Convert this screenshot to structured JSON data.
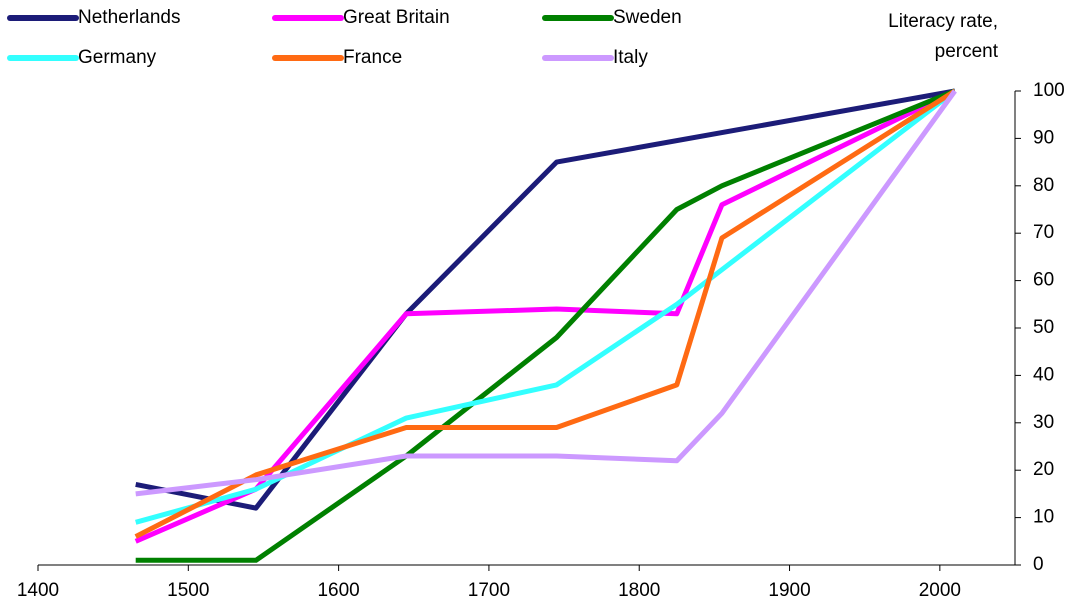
{
  "chart_data": {
    "type": "line",
    "ylabel": [
      "Literacy rate,",
      "percent"
    ],
    "xlim": [
      1400,
      2050
    ],
    "xticks": [
      1400,
      1500,
      1600,
      1700,
      1800,
      1900,
      2000
    ],
    "ylim": [
      0,
      100
    ],
    "yticks": [
      0,
      10,
      20,
      30,
      40,
      50,
      60,
      70,
      80,
      90,
      100
    ],
    "series": [
      {
        "name": "Netherlands",
        "color": "#1c1c78",
        "x": [
          1465,
          1545,
          1645,
          1745,
          2010
        ],
        "values": [
          17,
          12,
          53,
          85,
          100
        ]
      },
      {
        "name": "Great Britain",
        "color": "#ff00ff",
        "x": [
          1465,
          1545,
          1645,
          1745,
          1825,
          1855,
          2010
        ],
        "values": [
          5,
          16,
          53,
          54,
          53,
          76,
          100
        ]
      },
      {
        "name": "Sweden",
        "color": "#008000",
        "x": [
          1465,
          1545,
          1645,
          1745,
          1825,
          1855,
          2010
        ],
        "values": [
          1,
          1,
          23,
          48,
          75,
          80,
          100
        ]
      },
      {
        "name": "Germany",
        "color": "#33ffff",
        "x": [
          1465,
          1545,
          1645,
          1745,
          1825,
          2010
        ],
        "values": [
          9,
          16,
          31,
          38,
          55,
          100
        ]
      },
      {
        "name": "France",
        "color": "#ff6a13",
        "x": [
          1465,
          1545,
          1645,
          1745,
          1825,
          1855,
          2010
        ],
        "values": [
          6,
          19,
          29,
          29,
          38,
          69,
          100
        ]
      },
      {
        "name": "Italy",
        "color": "#cc99ff",
        "x": [
          1465,
          1545,
          1645,
          1745,
          1825,
          1855,
          2010
        ],
        "values": [
          15,
          18,
          23,
          23,
          22,
          32,
          100
        ]
      }
    ]
  }
}
